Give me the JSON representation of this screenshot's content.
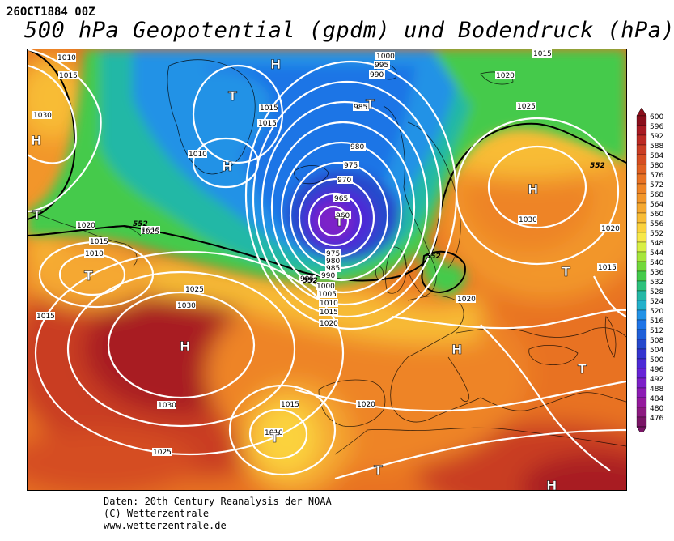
{
  "header": {
    "date": "26OCT1884 00Z",
    "title": "500 hPa Geopotential (gpdm) und Bodendruck (hPa)"
  },
  "legend": {
    "levels": [
      "600",
      "596",
      "592",
      "588",
      "584",
      "580",
      "576",
      "572",
      "568",
      "564",
      "560",
      "556",
      "552",
      "548",
      "544",
      "540",
      "536",
      "532",
      "528",
      "524",
      "520",
      "516",
      "512",
      "508",
      "504",
      "500",
      "496",
      "492",
      "488",
      "484",
      "480",
      "476"
    ],
    "colors": [
      "#8a0f1c",
      "#a81b23",
      "#bb2a24",
      "#c93d24",
      "#d54d22",
      "#e06022",
      "#e87224",
      "#ee8426",
      "#f2962a",
      "#f5a830",
      "#f8bc36",
      "#fbd23e",
      "#f7e84a",
      "#d8ef45",
      "#a6e63b",
      "#72d83a",
      "#44ca4b",
      "#2cc17c",
      "#24b8a6",
      "#22b0cb",
      "#2292e6",
      "#1f74e6",
      "#1f5fd8",
      "#2548cc",
      "#3434cf",
      "#4c2ad6",
      "#6624d6",
      "#7c20c8",
      "#8c1cb4",
      "#941a9c",
      "#8c1a80",
      "#7a1566"
    ]
  },
  "map": {
    "highs": [
      {
        "label": "H",
        "name": "high-azores"
      },
      {
        "label": "H",
        "name": "high-russia"
      },
      {
        "label": "H",
        "name": "high-greenland-north"
      },
      {
        "label": "H",
        "name": "high-greenland-south"
      },
      {
        "label": "H",
        "name": "high-west-atlantic"
      },
      {
        "label": "H",
        "name": "high-balkans"
      },
      {
        "label": "H",
        "name": "high-south-east"
      }
    ],
    "lows": [
      {
        "label": "T",
        "name": "low-north-sea"
      },
      {
        "label": "T",
        "name": "low-canada"
      },
      {
        "label": "T",
        "name": "low-newfoundland"
      },
      {
        "label": "T",
        "name": "low-west-atlantic"
      },
      {
        "label": "T",
        "name": "low-spain-west"
      },
      {
        "label": "T",
        "name": "low-north-africa"
      },
      {
        "label": "T",
        "name": "low-iceland-north"
      },
      {
        "label": "T",
        "name": "low-turkey"
      },
      {
        "label": "T",
        "name": "low-black-sea"
      }
    ],
    "isobar_labels": [
      "1010",
      "1015",
      "1030",
      "1020",
      "1015",
      "1010",
      "1015",
      "1025",
      "1030",
      "1015",
      "1025",
      "1030",
      "1025",
      "1015",
      "1010",
      "1015",
      "1015",
      "1010",
      "1000",
      "995",
      "990",
      "985",
      "980",
      "975",
      "970",
      "965",
      "960",
      "975",
      "980",
      "985",
      "990",
      "995",
      "1000",
      "1005",
      "1010",
      "1015",
      "1020",
      "1020",
      "1025",
      "1030",
      "1015",
      "1020",
      "1020",
      "1015",
      "1020"
    ],
    "contour_552": [
      "552",
      "552",
      "552",
      "552"
    ]
  },
  "footer": {
    "line1": "Daten: 20th Century Reanalysis der NOAA",
    "line2": "(C) Wetterzentrale",
    "line3": "www.wetterzentrale.de"
  }
}
